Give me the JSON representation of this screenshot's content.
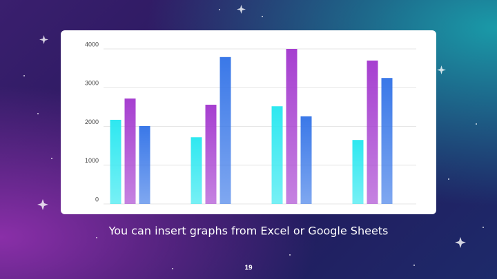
{
  "chart_data": {
    "type": "bar",
    "categories": [
      null,
      null,
      null,
      null
    ],
    "series": [
      {
        "color": "#2ee8f0",
        "values": [
          2170,
          1720,
          2520,
          1650
        ]
      },
      {
        "color": "#a63fd0",
        "values": [
          2720,
          2560,
          4000,
          3700
        ]
      },
      {
        "color": "#3a78e8",
        "values": [
          2010,
          3790,
          2260,
          3250
        ]
      }
    ],
    "ylim": [
      0,
      4000
    ],
    "yticks": [
      0,
      1000,
      2000,
      3000,
      4000
    ],
    "grid": true
  },
  "caption": "You can insert graphs from Excel or Google Sheets",
  "page_number": "19"
}
